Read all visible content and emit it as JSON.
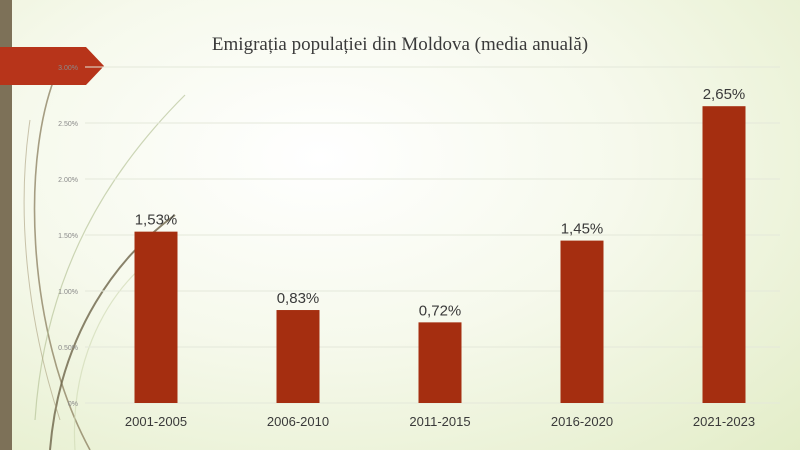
{
  "slide": {
    "title": "Emigrația populației din Moldova (media anuală)"
  },
  "colors": {
    "bar": "#a52e10",
    "accent_arrow": "#b7341a",
    "left_bar": "#7d7158",
    "gridline": "#e4e8da",
    "tick_text": "#8a8a8a",
    "label_text": "#3a3a3a"
  },
  "chart_data": {
    "type": "bar",
    "title": "Emigrația populației din Moldova (media anuală)",
    "categories": [
      "2001-2005",
      "2006-2010",
      "2011-2015",
      "2016-2020",
      "2021-2023"
    ],
    "values": [
      1.53,
      0.83,
      0.72,
      1.45,
      2.65
    ],
    "data_labels": [
      "1,53%",
      "0,83%",
      "0,72%",
      "1,45%",
      "2,65%"
    ],
    "y_ticks": [
      0,
      0.5,
      1.0,
      1.5,
      2.0,
      2.5,
      3.0
    ],
    "y_tick_labels": [
      "0%",
      "0.50%",
      "1.00%",
      "1.50%",
      "2.00%",
      "2.50%",
      "3.00%"
    ],
    "ylim": [
      0,
      3.0
    ],
    "xlabel": "",
    "ylabel": "",
    "grid": true,
    "legend": "none"
  }
}
